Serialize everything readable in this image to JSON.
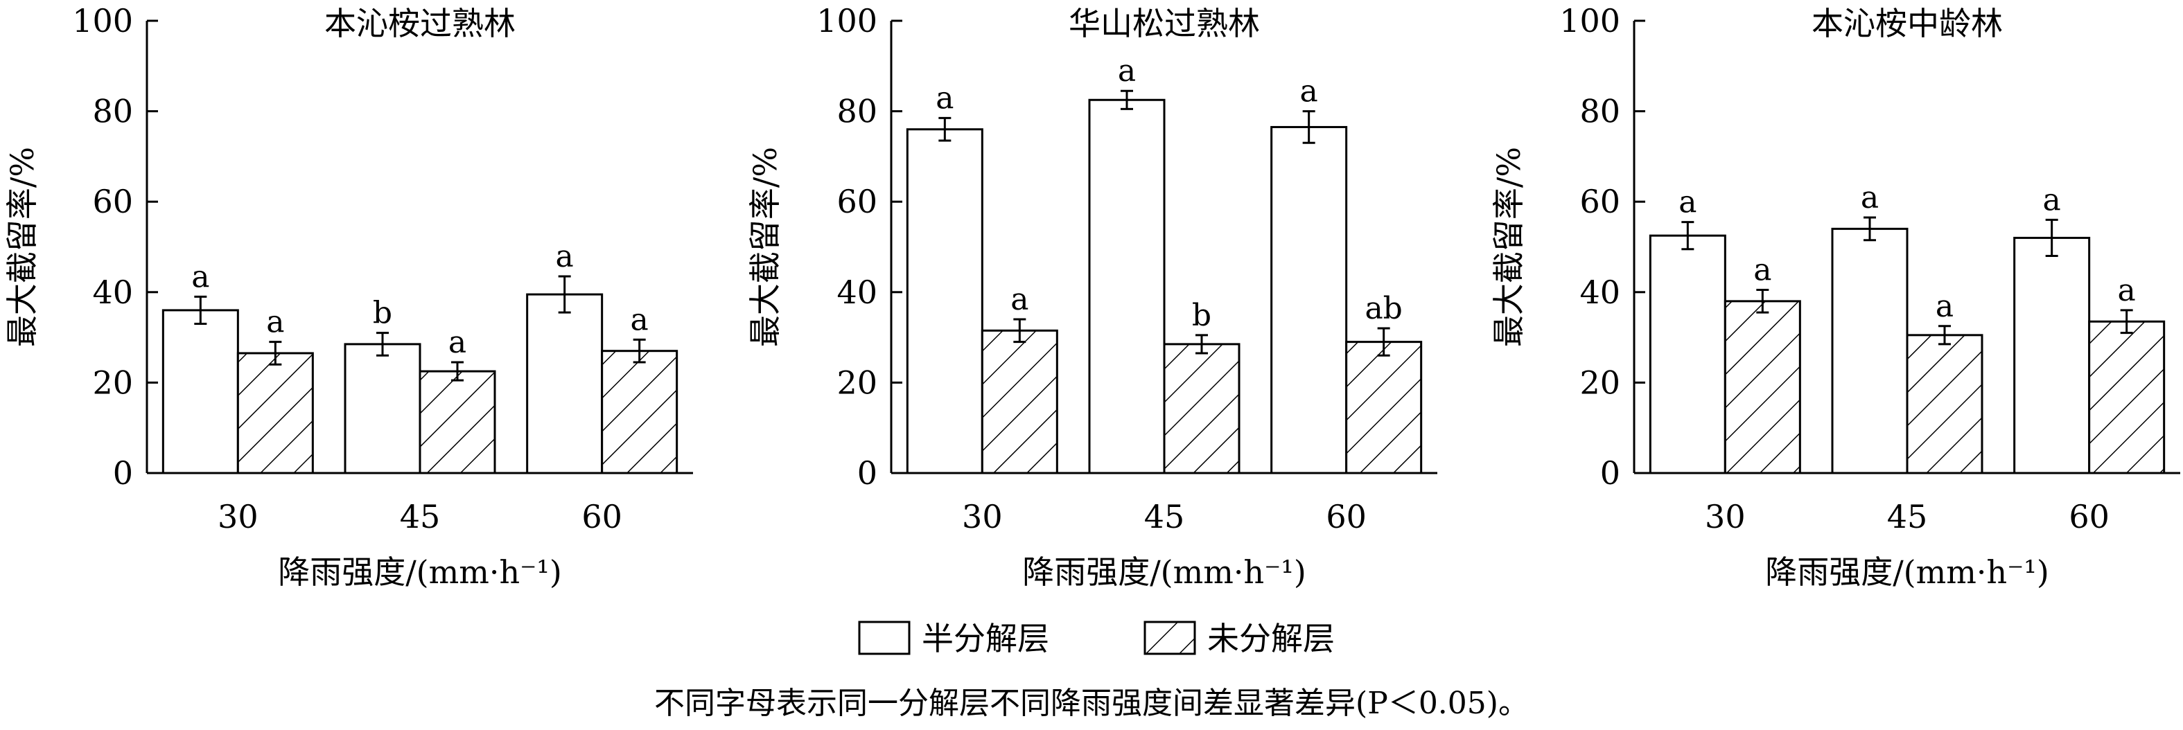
{
  "chart_data": [
    {
      "type": "bar",
      "title": "本沁桉过熟林",
      "ylabel": "最大截留率/%",
      "xlabel": "降雨强度/(mm·h⁻¹)",
      "categories": [
        "30",
        "45",
        "60"
      ],
      "ylim": [
        0,
        100
      ],
      "yticks": [
        0,
        20,
        40,
        60,
        80,
        100
      ],
      "series": [
        {
          "name": "半分解层",
          "values": [
            36,
            28.5,
            39.5
          ],
          "errors": [
            3,
            2.5,
            4
          ],
          "sig": [
            "a",
            "b",
            "a"
          ]
        },
        {
          "name": "未分解层",
          "values": [
            26.5,
            22.5,
            27
          ],
          "errors": [
            2.5,
            2,
            2.5
          ],
          "sig": [
            "a",
            "a",
            "a"
          ]
        }
      ]
    },
    {
      "type": "bar",
      "title": "华山松过熟林",
      "ylabel": "最大截留率/%",
      "xlabel": "降雨强度/(mm·h⁻¹)",
      "categories": [
        "30",
        "45",
        "60"
      ],
      "ylim": [
        0,
        100
      ],
      "yticks": [
        0,
        20,
        40,
        60,
        80,
        100
      ],
      "series": [
        {
          "name": "半分解层",
          "values": [
            76,
            82.5,
            76.5
          ],
          "errors": [
            2.5,
            2,
            3.5
          ],
          "sig": [
            "a",
            "a",
            "a"
          ]
        },
        {
          "name": "未分解层",
          "values": [
            31.5,
            28.5,
            29
          ],
          "errors": [
            2.5,
            2,
            3
          ],
          "sig": [
            "a",
            "b",
            "ab"
          ]
        }
      ]
    },
    {
      "type": "bar",
      "title": "本沁桉中龄林",
      "ylabel": "最大截留率/%",
      "xlabel": "降雨强度/(mm·h⁻¹)",
      "categories": [
        "30",
        "45",
        "60"
      ],
      "ylim": [
        0,
        100
      ],
      "yticks": [
        0,
        20,
        40,
        60,
        80,
        100
      ],
      "series": [
        {
          "name": "半分解层",
          "values": [
            52.5,
            54,
            52
          ],
          "errors": [
            3,
            2.5,
            4
          ],
          "sig": [
            "a",
            "a",
            "a"
          ]
        },
        {
          "name": "未分解层",
          "values": [
            38,
            30.5,
            33.5
          ],
          "errors": [
            2.5,
            2,
            2.5
          ],
          "sig": [
            "a",
            "a",
            "a"
          ]
        }
      ]
    }
  ],
  "legend": {
    "items": [
      {
        "label": "半分解层",
        "pattern": "open"
      },
      {
        "label": "未分解层",
        "pattern": "hatched"
      }
    ]
  },
  "footnote": "不同字母表示同一分解层不同降雨强度间差显著差异(P＜0.05)。"
}
